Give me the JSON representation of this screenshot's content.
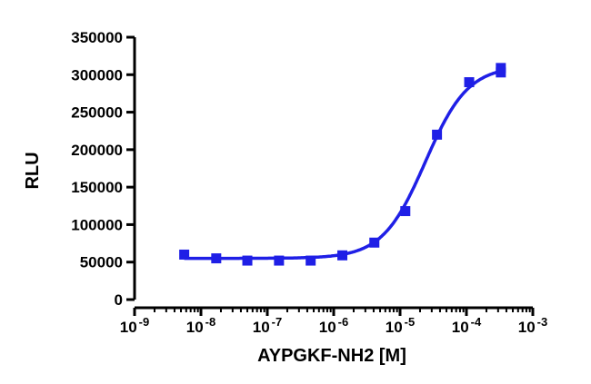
{
  "chart_data": {
    "type": "scatter",
    "title": "",
    "xlabel": "AYPGKF-NH2 [M]",
    "ylabel": "RLU",
    "x_scale": "log",
    "xlim": [
      1e-09,
      0.001
    ],
    "ylim": [
      0,
      350000
    ],
    "x_tick_labels": [
      {
        "base": "10",
        "exp": "-9"
      },
      {
        "base": "10",
        "exp": "-8"
      },
      {
        "base": "10",
        "exp": "-7"
      },
      {
        "base": "10",
        "exp": "-6"
      },
      {
        "base": "10",
        "exp": "-5"
      },
      {
        "base": "10",
        "exp": "-4"
      },
      {
        "base": "10",
        "exp": "-3"
      }
    ],
    "y_tick_labels": [
      "0",
      "50000",
      "100000",
      "150000",
      "200000",
      "250000",
      "300000",
      "350000"
    ],
    "grid": false,
    "legend": "none",
    "series": [
      {
        "color": "#1f1fe6",
        "marker": "square",
        "points": [
          {
            "x": 5.6e-09,
            "y": 60000
          },
          {
            "x": 1.7e-08,
            "y": 55000
          },
          {
            "x": 5e-08,
            "y": 52000
          },
          {
            "x": 1.5e-07,
            "y": 52000
          },
          {
            "x": 4.5e-07,
            "y": 52000
          },
          {
            "x": 1.35e-06,
            "y": 59000
          },
          {
            "x": 4.1e-06,
            "y": 76000
          },
          {
            "x": 1.2e-05,
            "y": 118000
          },
          {
            "x": 3.6e-05,
            "y": 220000
          },
          {
            "x": 0.00011,
            "y": 290000
          },
          {
            "x": 0.00033,
            "y": 303000
          },
          {
            "x": 0.00033,
            "y": 309000
          }
        ],
        "fit": {
          "model": "sigmoid",
          "bottom": 55000,
          "top": 312000,
          "log_ec50": -4.62,
          "hill": 1.35
        }
      }
    ]
  }
}
